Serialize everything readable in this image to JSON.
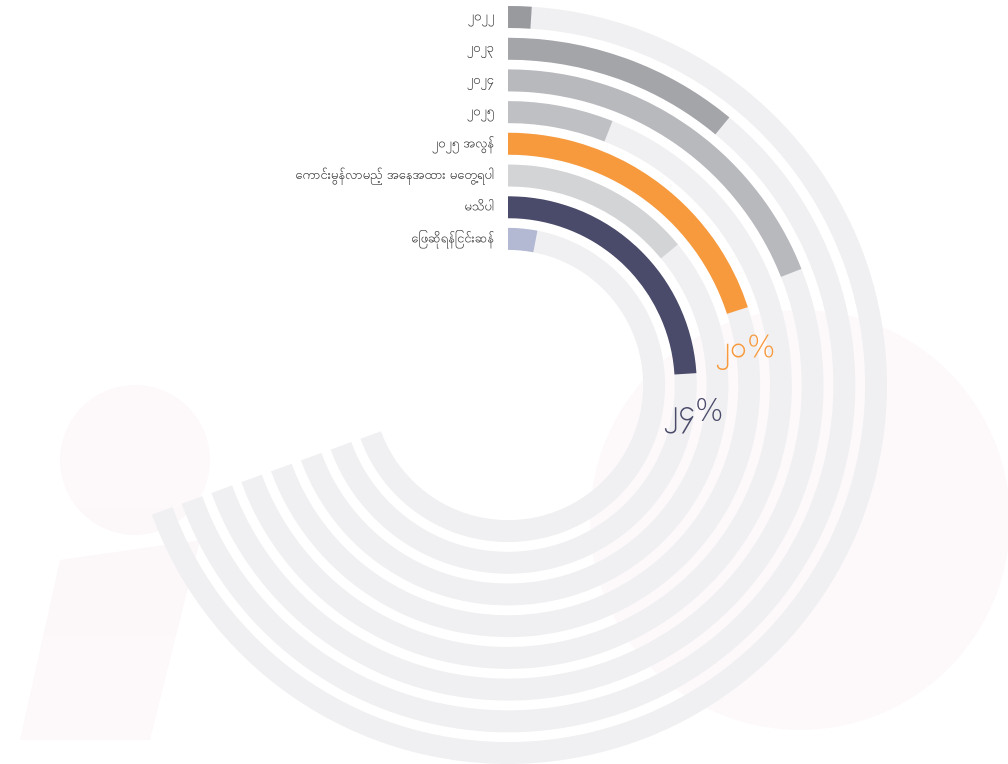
{
  "chart_data": {
    "type": "radial_bar",
    "categories": [
      "၂၀၂၂",
      "၂၀၂၃",
      "၂၀၂၄",
      "၂၀၂၅",
      "၂၀၂၅ အလွန်",
      "ကောင်းမွန်လာမည့် အနေအထား မတွေ့ရပါ",
      "မသိပါ",
      "ဖြေဆိုရန်ငြင်းဆန်"
    ],
    "values": [
      1,
      11,
      19,
      6,
      20,
      14,
      24,
      3
    ],
    "value_labels": [
      null,
      null,
      null,
      null,
      "၂၀%",
      null,
      "၂၄%",
      null
    ],
    "colors": [
      "#999a9e",
      "#a4a5a9",
      "#b8b9bd",
      "#bfc0c3",
      "#f79a3e",
      "#d3d4d6",
      "#4a4a6a",
      "#b3b8d3"
    ]
  }
}
